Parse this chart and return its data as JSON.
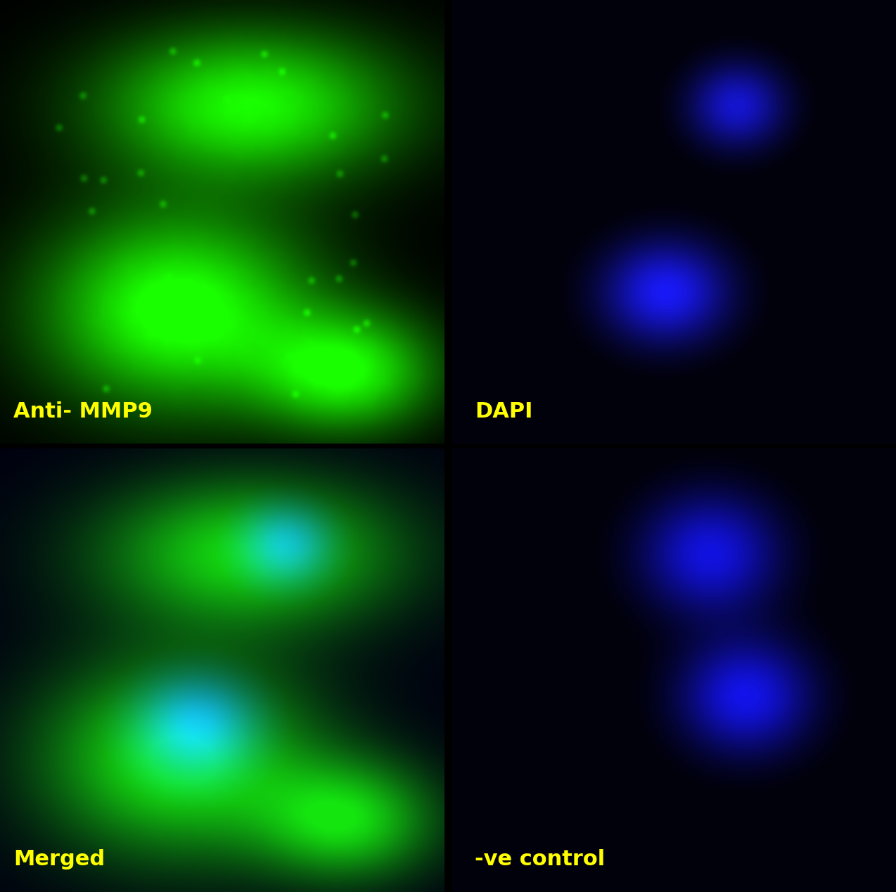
{
  "panels": [
    {
      "label": "Anti- MMP9",
      "type": "green_cells"
    },
    {
      "label": "DAPI",
      "type": "blue_nuclei"
    },
    {
      "label": "Merged",
      "type": "merged"
    },
    {
      "label": "-ve control",
      "type": "blue_nuclei_ve"
    }
  ],
  "label_color": "#FFFF00",
  "label_fontsize": 22,
  "bg_color_green": "#000000",
  "bg_color_blue": "#00000F",
  "grid_rows": 2,
  "grid_cols": 2,
  "fig_width": 12.8,
  "fig_height": 12.69
}
